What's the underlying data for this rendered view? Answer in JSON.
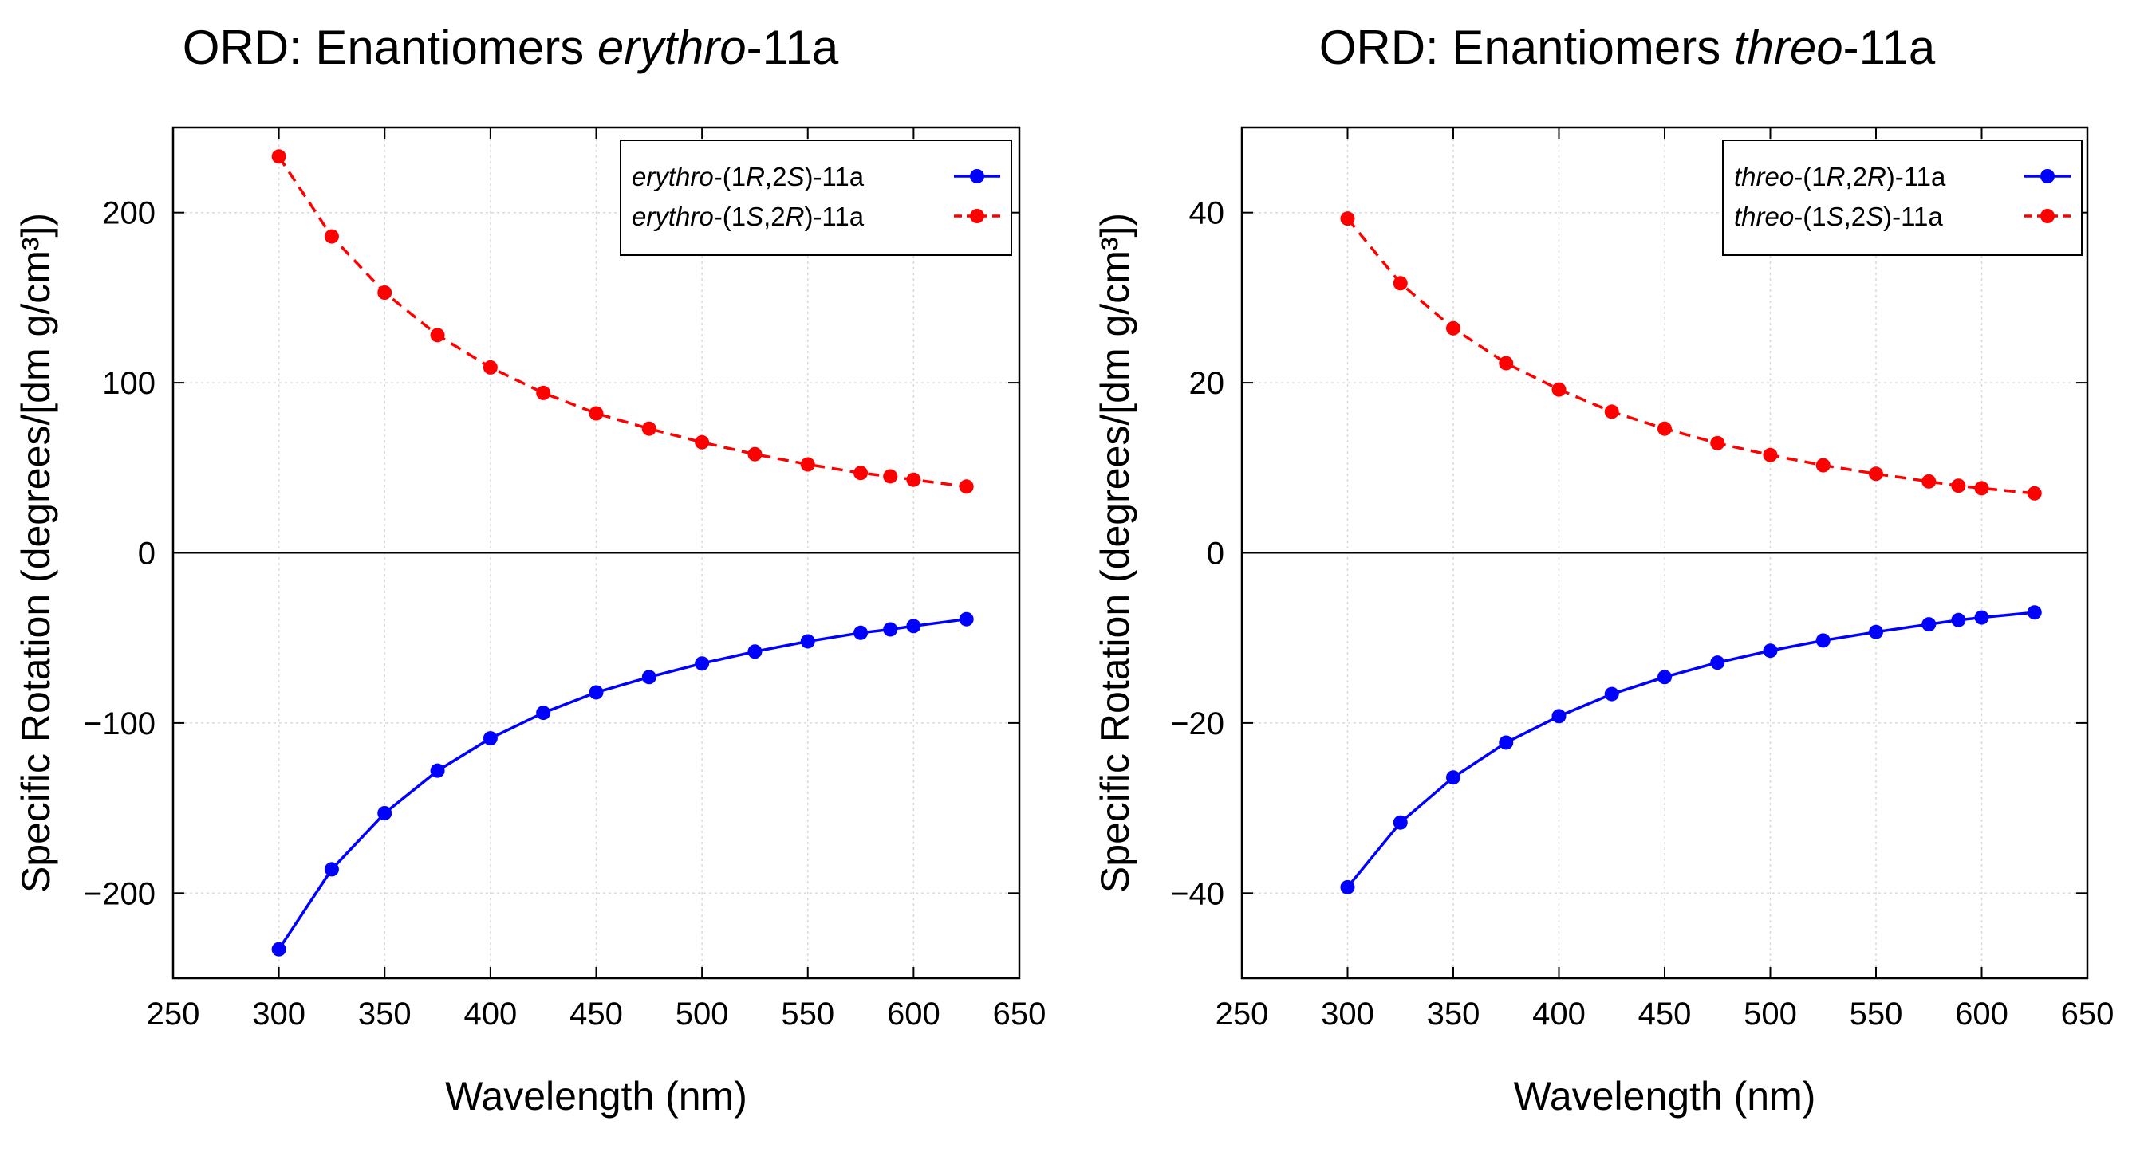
{
  "figure": {
    "charts": [
      {
        "title_main": "ORD: Enantiomers ",
        "title_italic": "erythro",
        "title_suffix": "-11a"
      },
      {
        "title_main": "ORD: Enantiomers ",
        "title_italic": "threo",
        "title_suffix": "-11a"
      }
    ]
  },
  "chart_data": [
    {
      "type": "line",
      "title": "ORD: Enantiomers erythro-11a",
      "xlabel": "Wavelength (nm)",
      "ylabel": "Specific Rotation (degrees/[dm g/cm³])",
      "xlim": [
        250,
        650
      ],
      "ylim": [
        -250,
        250
      ],
      "xticks": [
        250,
        300,
        350,
        400,
        450,
        500,
        550,
        600,
        650
      ],
      "xtick_labels": [
        "250",
        "300",
        "350",
        "400",
        "450",
        "500",
        "550",
        "600",
        "650"
      ],
      "yticks": [
        -200,
        -100,
        0,
        100,
        200
      ],
      "ytick_labels": [
        "−200",
        "−100",
        "0",
        "100",
        "200"
      ],
      "grid": true,
      "legend_position": "top-right",
      "x": [
        300,
        325,
        350,
        375,
        400,
        425,
        450,
        475,
        500,
        525,
        550,
        575,
        589,
        600,
        625
      ],
      "series": [
        {
          "name": "erythro-(1R,2S)-11a",
          "legend_parts": [
            {
              "text": "erythro",
              "italic": true
            },
            {
              "text": "-(1",
              "italic": false
            },
            {
              "text": "R",
              "italic": true
            },
            {
              "text": ",2",
              "italic": false
            },
            {
              "text": "S",
              "italic": true
            },
            {
              "text": ")-11a",
              "italic": false
            }
          ],
          "color": "#0000ff",
          "dash": "solid",
          "values": [
            -233,
            -186,
            -153,
            -128,
            -109,
            -94,
            -82,
            -73,
            -65,
            -58,
            -52,
            -47,
            -45,
            -43,
            -39
          ]
        },
        {
          "name": "erythro-(1S,2R)-11a",
          "legend_parts": [
            {
              "text": "erythro",
              "italic": true
            },
            {
              "text": "-(1",
              "italic": false
            },
            {
              "text": "S",
              "italic": true
            },
            {
              "text": ",2",
              "italic": false
            },
            {
              "text": "R",
              "italic": true
            },
            {
              "text": ")-11a",
              "italic": false
            }
          ],
          "color": "#ff0000",
          "dash": "dashed",
          "values": [
            233,
            186,
            153,
            128,
            109,
            94,
            82,
            73,
            65,
            58,
            52,
            47,
            45,
            43,
            39
          ]
        }
      ]
    },
    {
      "type": "line",
      "title": "ORD: Enantiomers threo-11a",
      "xlabel": "Wavelength (nm)",
      "ylabel": "Specific Rotation (degrees/[dm g/cm³])",
      "xlim": [
        250,
        650
      ],
      "ylim": [
        -50,
        50
      ],
      "xticks": [
        250,
        300,
        350,
        400,
        450,
        500,
        550,
        600,
        650
      ],
      "xtick_labels": [
        "250",
        "300",
        "350",
        "400",
        "450",
        "500",
        "550",
        "600",
        "650"
      ],
      "yticks": [
        -40,
        -20,
        0,
        20,
        40
      ],
      "ytick_labels": [
        "−40",
        "−20",
        "0",
        "20",
        "40"
      ],
      "grid": true,
      "legend_position": "top-right",
      "x": [
        300,
        325,
        350,
        375,
        400,
        425,
        450,
        475,
        500,
        525,
        550,
        575,
        589,
        600,
        625
      ],
      "series": [
        {
          "name": "threo-(1R,2R)-11a",
          "legend_parts": [
            {
              "text": "threo",
              "italic": true
            },
            {
              "text": "-(1",
              "italic": false
            },
            {
              "text": "R",
              "italic": true
            },
            {
              "text": ",2",
              "italic": false
            },
            {
              "text": "R",
              "italic": true
            },
            {
              "text": ")-11a",
              "italic": false
            }
          ],
          "color": "#0000ff",
          "dash": "solid",
          "values": [
            -39.3,
            -31.7,
            -26.4,
            -22.3,
            -19.2,
            -16.6,
            -14.6,
            -12.9,
            -11.5,
            -10.3,
            -9.3,
            -8.4,
            -7.9,
            -7.6,
            -7.0
          ]
        },
        {
          "name": "threo-(1S,2S)-11a",
          "legend_parts": [
            {
              "text": "threo",
              "italic": true
            },
            {
              "text": "-(1",
              "italic": false
            },
            {
              "text": "S",
              "italic": true
            },
            {
              "text": ",2",
              "italic": false
            },
            {
              "text": "S",
              "italic": true
            },
            {
              "text": ")-11a",
              "italic": false
            }
          ],
          "color": "#ff0000",
          "dash": "dashed",
          "values": [
            39.3,
            31.7,
            26.4,
            22.3,
            19.2,
            16.6,
            14.6,
            12.9,
            11.5,
            10.3,
            9.3,
            8.4,
            7.9,
            7.6,
            7.0
          ]
        }
      ]
    }
  ]
}
